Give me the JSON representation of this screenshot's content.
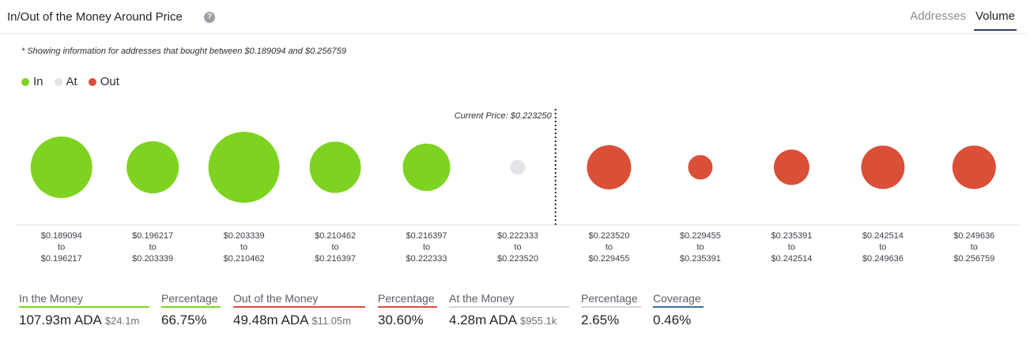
{
  "header": {
    "title": "In/Out of the Money Around Price",
    "tabs": [
      {
        "label": "Addresses",
        "active": false
      },
      {
        "label": "Volume",
        "active": true
      }
    ]
  },
  "note": "* Showing information for addresses that bought between $0.189094 and $0.256759",
  "legend": [
    {
      "label": "In",
      "color": "#7ed321"
    },
    {
      "label": "At",
      "color": "#e2e4e7"
    },
    {
      "label": "Out",
      "color": "#d94f37"
    }
  ],
  "chart_data": {
    "type": "scatter",
    "current_price_label": "Current Price: $0.223250",
    "marker_after_index": 5,
    "buckets": [
      {
        "from": "$0.189094",
        "to": "$0.196217",
        "status": "in",
        "size": 78
      },
      {
        "from": "$0.196217",
        "to": "$0.203339",
        "status": "in",
        "size": 66
      },
      {
        "from": "$0.203339",
        "to": "$0.210462",
        "status": "in",
        "size": 90
      },
      {
        "from": "$0.210462",
        "to": "$0.216397",
        "status": "in",
        "size": 65
      },
      {
        "from": "$0.216397",
        "to": "$0.222333",
        "status": "in",
        "size": 60
      },
      {
        "from": "$0.222333",
        "to": "$0.223520",
        "status": "at",
        "size": 19
      },
      {
        "from": "$0.223520",
        "to": "$0.229455",
        "status": "out",
        "size": 56
      },
      {
        "from": "$0.229455",
        "to": "$0.235391",
        "status": "out",
        "size": 31
      },
      {
        "from": "$0.235391",
        "to": "$0.242514",
        "status": "out",
        "size": 45
      },
      {
        "from": "$0.242514",
        "to": "$0.249636",
        "status": "out",
        "size": 55
      },
      {
        "from": "$0.249636",
        "to": "$0.256759",
        "status": "out",
        "size": 55
      }
    ],
    "range_separator": "to"
  },
  "stats": {
    "in_money": {
      "label": "In the Money",
      "value": "107.93m ADA",
      "sub": "$24.1m",
      "color": "#7ed321"
    },
    "in_pct": {
      "label": "Percentage",
      "value": "66.75%",
      "color": "#7ed321"
    },
    "out_money": {
      "label": "Out of the Money",
      "value": "49.48m ADA",
      "sub": "$11.05m",
      "color": "#d94f37"
    },
    "out_pct": {
      "label": "Percentage",
      "value": "30.60%",
      "color": "#d94f37"
    },
    "at_money": {
      "label": "At the Money",
      "value": "4.28m ADA",
      "sub": "$955.1k",
      "color": "#d4d7dc"
    },
    "at_pct": {
      "label": "Percentage",
      "value": "2.65%",
      "color": "#d4d7dc"
    },
    "coverage": {
      "label": "Coverage",
      "value": "0.46%",
      "color": "#3f6ea8"
    }
  }
}
